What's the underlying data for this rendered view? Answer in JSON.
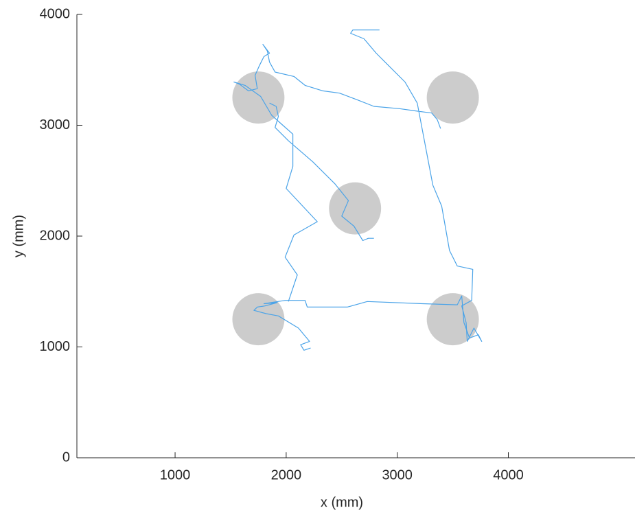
{
  "chart_data": {
    "type": "line",
    "xlabel": "x (mm)",
    "ylabel": "y (mm)",
    "xlim": [
      116,
      5140
    ],
    "ylim": [
      0,
      4000
    ],
    "xticks": [
      1000,
      2000,
      3000,
      4000
    ],
    "yticks": [
      0,
      1000,
      2000,
      3000,
      4000
    ],
    "color": "#4aa3e8",
    "x": [
      2220,
      2160,
      2130,
      2210,
      2110,
      1930,
      1820,
      1710,
      1740,
      1810,
      1920,
      1800,
      1990,
      2170,
      2190,
      2550,
      2730,
      3230,
      3540,
      3580,
      3600,
      3650,
      3730,
      3760,
      3690,
      3630,
      3620,
      3580,
      3670,
      3680,
      3540,
      3470,
      3400,
      3320,
      3180,
      3070,
      2890,
      2810,
      2700,
      2580,
      2600,
      2840,
      null,
      3390,
      3360,
      3310,
      3160,
      3020,
      2790,
      2640,
      2480,
      2330,
      2170,
      2070,
      1900,
      1850,
      1830,
      1790,
      1850,
      1800,
      1760,
      1720,
      1740,
      1660,
      1580,
      1530,
      1630,
      1770,
      1870,
      1970,
      2060,
      2060,
      2000,
      2280,
      2070,
      1990,
      2100,
      2020,
      null,
      1850,
      1910,
      1930,
      1900,
      2020,
      2240,
      2440,
      2560,
      2500,
      2610,
      2690,
      2740,
      2790
    ],
    "y": [
      990,
      970,
      1020,
      1050,
      1170,
      1280,
      1300,
      1330,
      1360,
      1370,
      1400,
      1390,
      1420,
      1420,
      1360,
      1360,
      1410,
      1390,
      1380,
      1460,
      1220,
      1080,
      1110,
      1050,
      1170,
      1050,
      1220,
      1370,
      1420,
      1700,
      1730,
      1870,
      2270,
      2460,
      3200,
      3390,
      3570,
      3650,
      3780,
      3830,
      3860,
      3860,
      null,
      2970,
      3050,
      3110,
      3130,
      3150,
      3170,
      3230,
      3290,
      3310,
      3360,
      3440,
      3480,
      3570,
      3670,
      3730,
      3650,
      3620,
      3540,
      3450,
      3330,
      3310,
      3370,
      3390,
      3360,
      3260,
      3090,
      3000,
      2920,
      2630,
      2430,
      2130,
      2010,
      1810,
      1650,
      1410,
      null,
      3200,
      3170,
      3080,
      2980,
      2860,
      2670,
      2470,
      2320,
      2180,
      2090,
      1960,
      1980,
      1980
    ],
    "circles": {
      "x": [
        1750,
        3500,
        2620,
        1750,
        3500
      ],
      "y": [
        3250,
        3250,
        2250,
        1250,
        1250
      ],
      "r": 235,
      "color": "#cccccc"
    }
  }
}
